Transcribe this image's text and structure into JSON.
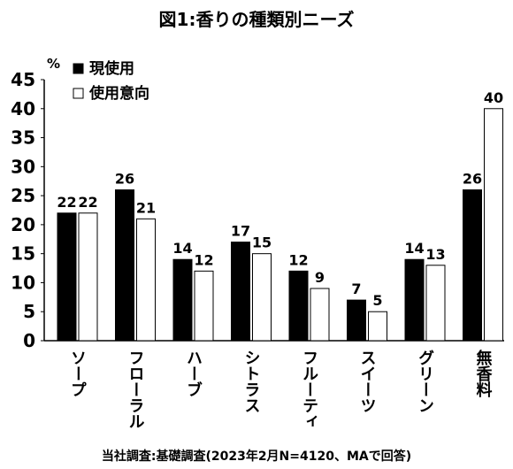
{
  "chart_data": {
    "type": "bar",
    "title": "図1:香りの種類別ニーズ",
    "ylabel": "%",
    "ylim": [
      0,
      45
    ],
    "yticks": [
      0,
      5,
      10,
      15,
      20,
      25,
      30,
      35,
      40,
      45
    ],
    "categories": [
      "ソープ",
      "フローラル",
      "ハーブ",
      "シトラス",
      "フルーティ",
      "スイーツ",
      "グリーン",
      "無香料"
    ],
    "series": [
      {
        "name": "現使用",
        "values": [
          22,
          26,
          14,
          17,
          12,
          7,
          14,
          26
        ],
        "color": "#000000"
      },
      {
        "name": "使用意向",
        "values": [
          22,
          21,
          12,
          15,
          9,
          5,
          13,
          40
        ],
        "color": "#ffffff"
      }
    ],
    "legend_position": "top-left",
    "grid": false
  },
  "source_note": "当社調査:基礎調査(2023年2月N=4120、MAで回答)"
}
